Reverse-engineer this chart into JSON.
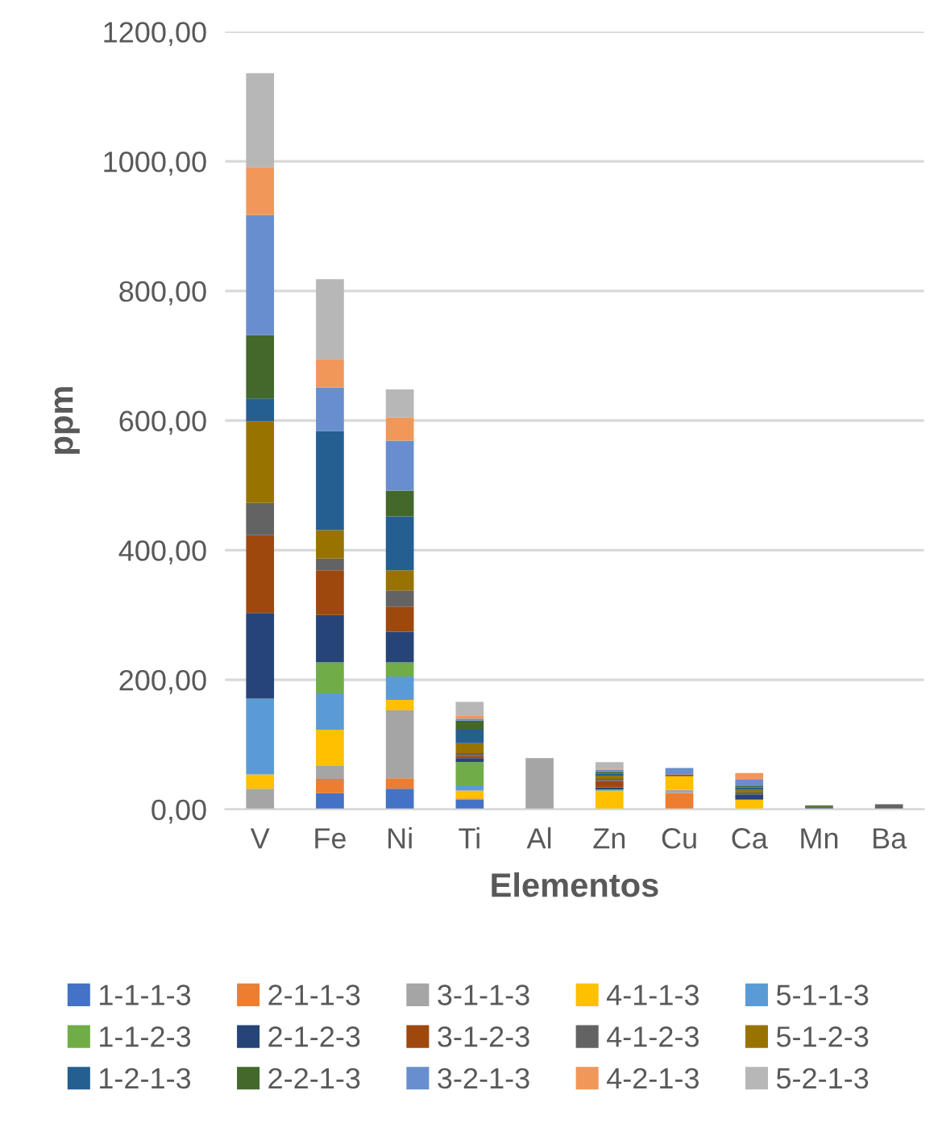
{
  "chart_data": {
    "type": "bar",
    "stacked": true,
    "xlabel": "Elementos",
    "ylabel": "ppm",
    "categories": [
      "V",
      "Fe",
      "Ni",
      "Ti",
      "Al",
      "Zn",
      "Cu",
      "Ca",
      "Mn",
      "Ba"
    ],
    "ylim": [
      0,
      1200
    ],
    "yticks": [
      {
        "value": 0,
        "label": "0,00"
      },
      {
        "value": 200,
        "label": "200,00"
      },
      {
        "value": 400,
        "label": "400,00"
      },
      {
        "value": 600,
        "label": "600,00"
      },
      {
        "value": 800,
        "label": "800,00"
      },
      {
        "value": 1000,
        "label": "1000,00"
      },
      {
        "value": 1200,
        "label": "1200,00"
      }
    ],
    "grid": "y",
    "legend": "bottom",
    "series": [
      {
        "name": "1-1-1-3",
        "color": "#4472c4",
        "values": [
          0,
          25,
          32,
          15,
          0,
          0,
          0,
          0,
          0,
          0
        ]
      },
      {
        "name": "2-1-1-3",
        "color": "#ed7d31",
        "values": [
          0,
          22,
          16,
          2,
          0,
          0,
          25,
          0,
          0,
          0
        ]
      },
      {
        "name": "3-1-1-3",
        "color": "#a5a5a5",
        "values": [
          32,
          21,
          105,
          0,
          79,
          null,
          5,
          0,
          null,
          0
        ]
      },
      {
        "name": "4-1-1-3",
        "color": "#ffc000",
        "values": [
          22,
          55,
          16,
          12,
          0,
          28,
          21,
          15,
          0,
          0
        ]
      },
      {
        "name": "5-1-1-3",
        "color": "#5b9bd5",
        "values": [
          117,
          56,
          36,
          8,
          0,
          1,
          0,
          0,
          0,
          0
        ]
      },
      {
        "name": "1-1-2-3",
        "color": "#70ad47",
        "values": [
          0,
          48,
          22,
          36,
          0,
          2,
          0,
          0,
          0,
          0
        ]
      },
      {
        "name": "2-1-2-3",
        "color": "#264478",
        "values": [
          132,
          73,
          47,
          6,
          0,
          3,
          0,
          8,
          2,
          0
        ]
      },
      {
        "name": "3-1-2-3",
        "color": "#9e480e",
        "values": [
          120,
          69,
          39,
          4,
          0,
          10,
          3,
          0,
          0,
          0
        ]
      },
      {
        "name": "4-1-2-3",
        "color": "#636363",
        "values": [
          50,
          18,
          25,
          4,
          0,
          3,
          0,
          3,
          2,
          8
        ]
      },
      {
        "name": "5-1-2-3",
        "color": "#997300",
        "values": [
          126,
          44,
          31,
          15,
          0,
          5,
          0,
          4,
          0,
          0
        ]
      },
      {
        "name": "1-2-1-3",
        "color": "#255e91",
        "values": [
          35,
          153,
          83,
          21,
          0,
          3,
          0,
          4,
          0,
          0
        ]
      },
      {
        "name": "2-2-1-3",
        "color": "#43682b",
        "values": [
          98,
          0,
          40,
          14,
          0,
          3,
          0,
          2,
          2,
          0
        ]
      },
      {
        "name": "3-2-1-3",
        "color": "#698ed0",
        "values": [
          185,
          67,
          77,
          3,
          0,
          3,
          10,
          10,
          0,
          0
        ]
      },
      {
        "name": "4-2-1-3",
        "color": "#f1975a",
        "values": [
          74,
          44,
          36,
          5,
          0,
          2,
          0,
          10,
          0,
          0
        ]
      },
      {
        "name": "5-2-1-3",
        "color": "#b7b7b7",
        "values": [
          145,
          123,
          43,
          21,
          0,
          10,
          0,
          0,
          0,
          0
        ]
      }
    ]
  }
}
